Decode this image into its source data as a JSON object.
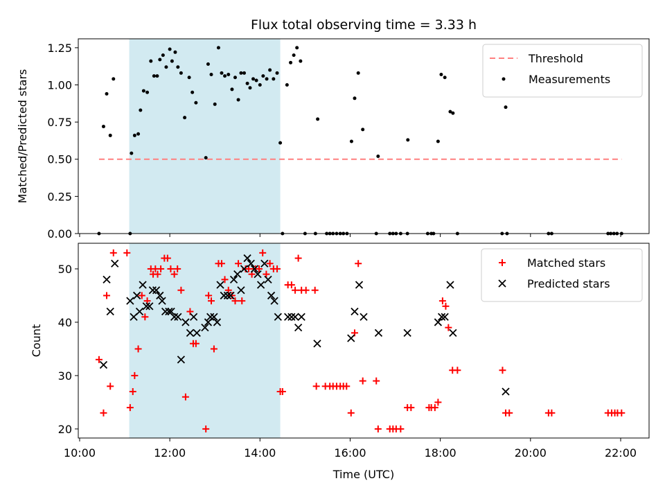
{
  "chart_data": {
    "type": "scatter",
    "title": "Flux total observing time = 3.33 h",
    "xlabel": "Time (UTC)",
    "x_axis": {
      "unit": "hours UTC",
      "xlim": [
        9.97,
        22.63
      ],
      "ticks": [
        10,
        12,
        14,
        16,
        18,
        20,
        22
      ],
      "tick_labels": [
        "10:00",
        "12:00",
        "14:00",
        "16:00",
        "18:00",
        "20:00",
        "22:00"
      ]
    },
    "highlight_span": {
      "x_start": 11.1,
      "x_end": 14.45,
      "color": "#add8e6"
    },
    "panels": [
      {
        "ylabel": "Matched/Predicted stars",
        "ylim": [
          0,
          1.31
        ],
        "yticks": [
          0,
          0.25,
          0.5,
          0.75,
          1.0,
          1.25
        ],
        "ytick_labels": [
          "0.00",
          "0.25",
          "0.50",
          "0.75",
          "1.00",
          "1.25"
        ],
        "legend_position": "upper right",
        "series": [
          {
            "name": "Threshold",
            "kind": "line",
            "color": "#ff7f7f",
            "dash": "dashed",
            "x": [
              10.43,
              22.02
            ],
            "y": [
              0.5,
              0.5
            ]
          },
          {
            "name": "Measurements",
            "kind": "scatter",
            "marker": "dot",
            "color": "#000000",
            "x": [
              10.43,
              10.53,
              10.6,
              10.68,
              10.75,
              11.12,
              11.15,
              11.22,
              11.3,
              11.35,
              11.42,
              11.5,
              11.58,
              11.65,
              11.72,
              11.78,
              11.85,
              11.92,
              12.0,
              12.05,
              12.12,
              12.18,
              12.25,
              12.33,
              12.43,
              12.5,
              12.58,
              12.8,
              12.85,
              12.92,
              13.0,
              13.08,
              13.15,
              13.22,
              13.3,
              13.38,
              13.45,
              13.52,
              13.58,
              13.65,
              13.72,
              13.78,
              13.85,
              13.92,
              14.0,
              14.07,
              14.15,
              14.22,
              14.3,
              14.38,
              14.45,
              14.5,
              14.6,
              14.68,
              14.75,
              14.82,
              14.9,
              15.0,
              15.23,
              15.28,
              15.48,
              15.55,
              15.62,
              15.7,
              15.78,
              15.85,
              15.93,
              16.03,
              16.1,
              16.18,
              16.28,
              16.58,
              16.62,
              16.88,
              16.95,
              17.02,
              17.12,
              17.27,
              17.28,
              17.72,
              17.8,
              17.85,
              17.95,
              18.02,
              18.1,
              18.22,
              18.28,
              18.38,
              19.37,
              19.45,
              19.48,
              20.4,
              20.47,
              21.72,
              21.78,
              21.85,
              21.92,
              22.02
            ],
            "y": [
              0.0,
              0.72,
              0.94,
              0.66,
              1.04,
              0.0,
              0.54,
              0.66,
              0.67,
              0.83,
              0.96,
              0.95,
              1.16,
              1.06,
              1.06,
              1.17,
              1.2,
              1.12,
              1.24,
              1.16,
              1.22,
              1.12,
              1.08,
              0.78,
              1.05,
              0.95,
              0.88,
              0.51,
              1.14,
              1.07,
              0.87,
              1.25,
              1.08,
              1.06,
              1.07,
              0.97,
              1.05,
              0.9,
              1.08,
              1.08,
              1.01,
              0.98,
              1.04,
              1.03,
              1.0,
              1.06,
              1.04,
              1.1,
              1.04,
              1.08,
              0.61,
              0.0,
              1.0,
              1.15,
              1.2,
              1.25,
              1.16,
              0.0,
              0.0,
              0.77,
              0.0,
              0.0,
              0.0,
              0.0,
              0.0,
              0.0,
              0.0,
              0.62,
              0.91,
              1.08,
              0.7,
              0.0,
              0.52,
              0.0,
              0.0,
              0.0,
              0.0,
              0.0,
              0.63,
              0.0,
              0.0,
              0.0,
              0.62,
              1.07,
              1.05,
              0.82,
              0.81,
              0.0,
              0.0,
              0.85,
              0.0,
              0.0,
              0.0,
              0.0,
              0.0,
              0.0,
              0.0,
              0.0
            ]
          }
        ]
      },
      {
        "ylabel": "Count",
        "ylim": [
          18.3,
          54.8
        ],
        "yticks": [
          20,
          30,
          40,
          50
        ],
        "ytick_labels": [
          "20",
          "30",
          "40",
          "50"
        ],
        "legend_position": "upper right",
        "series": [
          {
            "name": "Matched stars",
            "kind": "scatter",
            "marker": "plus",
            "color": "#ff0000",
            "x": [
              10.43,
              10.53,
              10.6,
              10.68,
              10.75,
              11.05,
              11.12,
              11.18,
              11.22,
              11.3,
              11.38,
              11.45,
              11.5,
              11.58,
              11.63,
              11.68,
              11.73,
              11.8,
              11.88,
              11.95,
              12.02,
              12.1,
              12.17,
              12.25,
              12.35,
              12.45,
              12.52,
              12.58,
              12.8,
              12.86,
              12.92,
              12.98,
              13.08,
              13.15,
              13.22,
              13.3,
              13.38,
              13.45,
              13.52,
              13.6,
              13.68,
              13.75,
              13.82,
              13.9,
              13.98,
              14.06,
              14.14,
              14.22,
              14.3,
              14.38,
              14.45,
              14.5,
              14.62,
              14.7,
              14.78,
              14.85,
              14.92,
              15.02,
              15.22,
              15.25,
              15.45,
              15.55,
              15.62,
              15.7,
              15.78,
              15.85,
              15.92,
              16.02,
              16.1,
              16.18,
              16.28,
              16.58,
              16.62,
              16.88,
              16.95,
              17.02,
              17.12,
              17.27,
              17.35,
              17.75,
              17.8,
              17.88,
              17.95,
              18.05,
              18.12,
              18.18,
              18.27,
              18.38,
              19.38,
              19.45,
              19.53,
              20.4,
              20.47,
              21.72,
              21.8,
              21.87,
              21.93,
              22.02
            ],
            "y": [
              33,
              23,
              45,
              28,
              53,
              53,
              24,
              27,
              30,
              35,
              45,
              41,
              44,
              50,
              49,
              50,
              49,
              50,
              52,
              52,
              50,
              49,
              50,
              46,
              26,
              42,
              36,
              36,
              20,
              45,
              44,
              35,
              51,
              51,
              48,
              46,
              45,
              44,
              51,
              44,
              50,
              50,
              49,
              50,
              50,
              53,
              49,
              51,
              50,
              50,
              27,
              27,
              47,
              47,
              46,
              52,
              46,
              46,
              46,
              28,
              28,
              28,
              28,
              28,
              28,
              28,
              28,
              23,
              38,
              51,
              29,
              29,
              20,
              20,
              20,
              20,
              20,
              24,
              24,
              24,
              24,
              24,
              25,
              44,
              43,
              39,
              31,
              31,
              31,
              23,
              23,
              23,
              23,
              23,
              23,
              23,
              23,
              23
            ]
          },
          {
            "name": "Predicted stars",
            "kind": "scatter",
            "marker": "x",
            "color": "#000000",
            "x": [
              10.53,
              10.6,
              10.68,
              10.78,
              11.12,
              11.2,
              11.27,
              11.33,
              11.4,
              11.48,
              11.55,
              11.62,
              11.7,
              11.78,
              11.83,
              11.9,
              11.98,
              12.03,
              12.1,
              12.18,
              12.25,
              12.35,
              12.45,
              12.53,
              12.6,
              12.78,
              12.85,
              12.9,
              12.98,
              13.05,
              13.12,
              13.2,
              13.28,
              13.35,
              13.42,
              13.5,
              13.58,
              13.65,
              13.72,
              13.8,
              13.88,
              13.95,
              14.02,
              14.1,
              14.18,
              14.25,
              14.32,
              14.4,
              14.62,
              14.7,
              14.78,
              14.85,
              14.92,
              15.27,
              16.02,
              16.1,
              16.2,
              16.3,
              16.63,
              17.27,
              17.95,
              18.03,
              18.1,
              18.22,
              18.28,
              19.45
            ],
            "y": [
              32,
              48,
              42,
              51,
              44,
              41,
              45,
              42,
              47,
              43,
              43,
              46,
              46,
              45,
              44,
              42,
              42,
              42,
              41,
              41,
              33,
              40,
              38,
              41,
              38,
              39,
              40,
              41,
              41,
              40,
              47,
              45,
              45,
              45,
              48,
              49,
              46,
              50,
              52,
              51,
              50,
              49,
              47,
              51,
              48,
              45,
              44,
              41,
              41,
              41,
              41,
              39,
              41,
              36,
              37,
              42,
              47,
              41,
              38,
              38,
              40,
              41,
              41,
              47,
              38,
              27
            ]
          }
        ]
      }
    ]
  }
}
